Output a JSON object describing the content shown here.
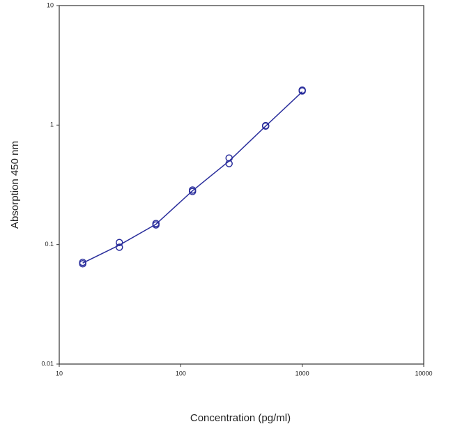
{
  "chart_data": {
    "type": "scatter",
    "x_label": "Concentration (pg/ml)",
    "y_label": "Absorption 450 nm",
    "x": [
      15.6,
      31.25,
      62.5,
      125,
      250,
      500,
      1000
    ],
    "series": [
      {
        "color": "#2a2e9c",
        "values": [
          0.071,
          0.104,
          0.15,
          0.286,
          0.53,
          0.99,
          1.96
        ]
      },
      {
        "color": "#2a2e9c",
        "values": [
          0.069,
          0.095,
          0.146,
          0.278,
          0.476,
          0.98,
          1.93
        ]
      },
      {
        "color": "#2a2e9c",
        "style": "line",
        "values": [
          0.07,
          0.099,
          0.148,
          0.282,
          0.5,
          0.98,
          1.9
        ]
      }
    ],
    "xlim": [
      10,
      10000
    ],
    "ylim": [
      0.01,
      10
    ],
    "xticks": [
      10,
      100,
      1000,
      10000
    ],
    "yticks": [
      0.01,
      0.1,
      1,
      10
    ],
    "log_x": true,
    "log_y": true
  }
}
